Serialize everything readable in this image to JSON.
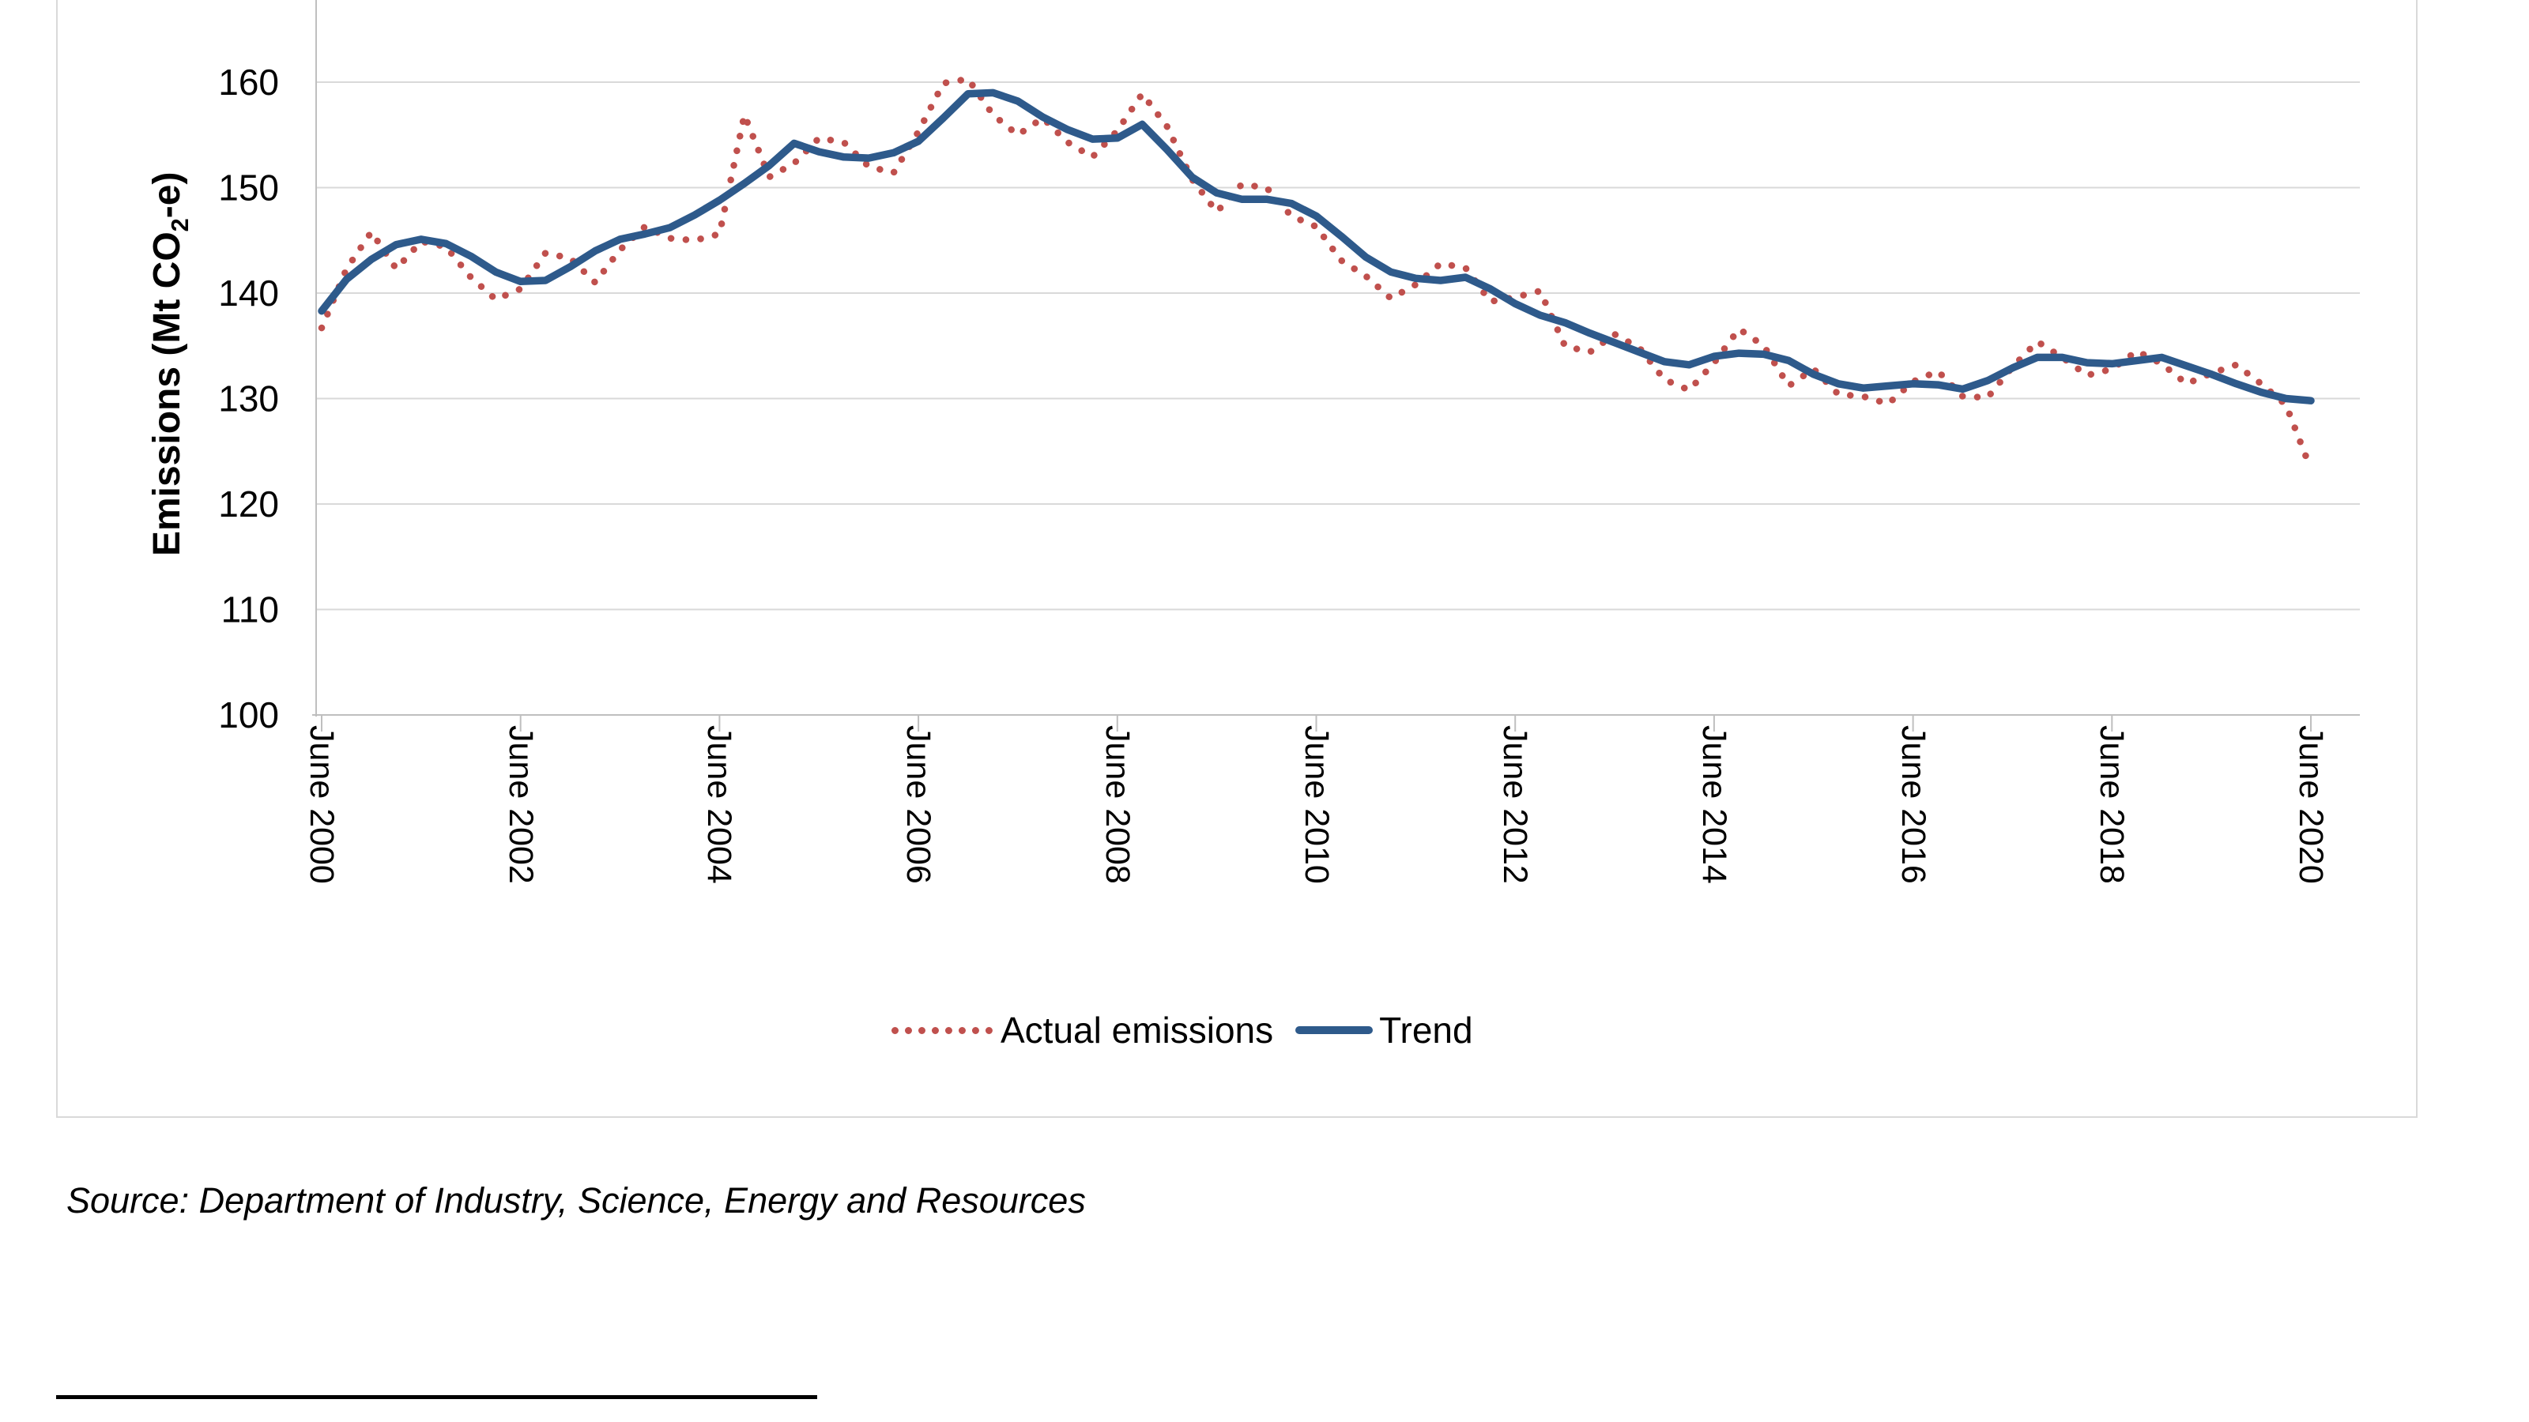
{
  "source_note": "Source: Department of Industry, Science, Energy and Resources",
  "chart_data": {
    "type": "line",
    "title": "",
    "ylabel_parts": {
      "prefix": "Emissions (Mt CO",
      "sub": "2",
      "suffix": "-e)"
    },
    "x_axis_start": "June 2000",
    "x_axis_frequency": "quarterly",
    "x_tick_labels": [
      "June 2000",
      "June 2002",
      "June 2004",
      "June 2006",
      "June 2008",
      "June 2010",
      "June 2012",
      "June 2014",
      "June 2016",
      "June 2018",
      "June 2020"
    ],
    "y_ticks": [
      100,
      110,
      120,
      130,
      140,
      150,
      160
    ],
    "y_tick_labels": [
      "100",
      "110",
      "120",
      "130",
      "140",
      "150",
      "160"
    ],
    "ylim": [
      100,
      160
    ],
    "grid": "horizontal",
    "legend_position": "bottom-center",
    "legend": [
      {
        "label": "Actual emissions"
      },
      {
        "label": "Trend"
      }
    ],
    "series": [
      {
        "name": "Actual emissions",
        "color": "#C0504D",
        "style": "dotted",
        "values": [
          136.7,
          142.3,
          145.8,
          142.3,
          144.9,
          144.4,
          141.5,
          139.4,
          140.4,
          143.8,
          143.3,
          141.0,
          144.1,
          146.3,
          145.2,
          145.0,
          145.6,
          156.9,
          151.0,
          152.3,
          154.7,
          154.3,
          152.0,
          151.4,
          155.3,
          159.9,
          160.3,
          156.9,
          155.0,
          156.6,
          154.3,
          152.9,
          155.4,
          158.9,
          155.8,
          150.8,
          147.7,
          150.3,
          150.0,
          147.3,
          146.3,
          143.1,
          141.6,
          139.5,
          140.8,
          142.8,
          142.4,
          139.2,
          139.6,
          140.2,
          135.0,
          134.4,
          136.1,
          134.8,
          131.8,
          130.8,
          133.4,
          136.6,
          135.0,
          131.2,
          132.8,
          130.4,
          130.2,
          129.5,
          131.6,
          132.6,
          130.2,
          130.1,
          133.0,
          135.4,
          133.9,
          132.2,
          132.8,
          134.5,
          133.3,
          131.4,
          132.4,
          133.2,
          131.4,
          129.4,
          123.3
        ]
      },
      {
        "name": "Trend",
        "color": "#2E5A8B",
        "style": "solid",
        "values": [
          138.3,
          141.3,
          143.2,
          144.6,
          145.1,
          144.7,
          143.5,
          142.0,
          141.1,
          141.2,
          142.5,
          144.0,
          145.1,
          145.6,
          146.2,
          147.4,
          148.8,
          150.4,
          152.1,
          154.2,
          153.4,
          152.9,
          152.8,
          153.3,
          154.4,
          156.6,
          158.9,
          159.0,
          158.2,
          156.7,
          155.5,
          154.6,
          154.7,
          156.0,
          153.6,
          151.0,
          149.5,
          148.9,
          148.9,
          148.5,
          147.3,
          145.4,
          143.4,
          142.0,
          141.4,
          141.2,
          141.5,
          140.4,
          139.0,
          137.9,
          137.2,
          136.2,
          135.3,
          134.4,
          133.5,
          133.2,
          134.0,
          134.3,
          134.2,
          133.6,
          132.3,
          131.4,
          131.0,
          131.2,
          131.4,
          131.3,
          130.9,
          131.7,
          132.9,
          133.9,
          133.9,
          133.4,
          133.3,
          133.6,
          133.9,
          133.1,
          132.3,
          131.4,
          130.6,
          130.0,
          129.8
        ]
      }
    ],
    "colors": {
      "gridline": "#D9D9D9",
      "axis": "#BFBFBF",
      "text": "#000000"
    }
  }
}
